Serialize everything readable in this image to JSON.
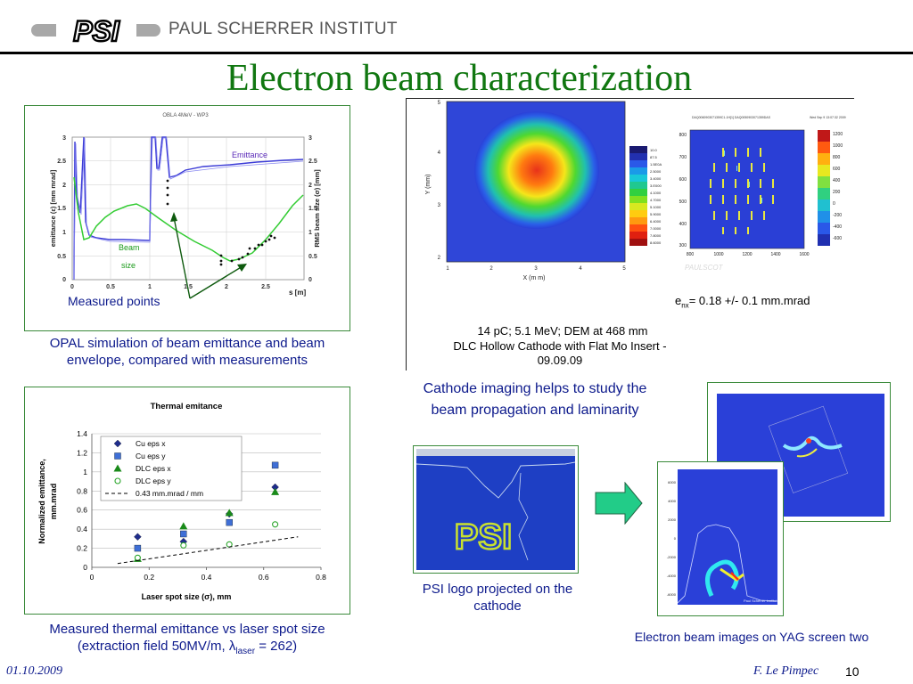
{
  "header": {
    "logo_text": "PSI",
    "institute": "PAUL SCHERRER INSTITUT",
    "title": "Electron beam characterization"
  },
  "panel_opal": {
    "plot_title": "OBLA 4MeV - WP3",
    "ylabel_left": "emittance (ε) [mm mrad]",
    "ylabel_right": "RMS beam size (σ) [mm]",
    "xlabel": "s [m]",
    "x_ticks": [
      "0",
      "0.5",
      "1",
      "1.5",
      "2",
      "2.5"
    ],
    "y_ticks_left": [
      "0",
      "0.5",
      "1",
      "1.5",
      "2",
      "2.5",
      "3"
    ],
    "y_ticks_right": [
      "0",
      "0.5",
      "1",
      "1.5",
      "2",
      "2.5",
      "3"
    ],
    "emittance_label": "Emittance",
    "beam_label": "Beam",
    "size_label": "size",
    "measured_label": "Measured points",
    "caption": "OPAL simulation of beam emittance and beam envelope, compared with measurements"
  },
  "panel_spot": {
    "xlabel": "X (m m)",
    "ylabel": "Y (mm)",
    "x_ticks": [
      "1",
      "2",
      "3",
      "4",
      "5"
    ],
    "y_ticks": [
      "2",
      "3",
      "4",
      "5"
    ],
    "colorbar_values": [
      "10.0",
      "87.5",
      "1.5E0A",
      "2.5000",
      "3.4000",
      "3.E000",
      "4.1000",
      "4.7000",
      "5.1000",
      "5.9000",
      "6.4000",
      "7.0000",
      "7.8000",
      "8.6000"
    ],
    "image_footer": "14 pC; 5.1 MeV; DEM at 468 mm",
    "cathode_line1": "DLC Hollow Cathode with Flat Mo Insert -",
    "cathode_line2": "09.09.09"
  },
  "panel_pepper": {
    "header_left": "DAQ0060903071359C1-1H[1] DAQ0050903071359DAS",
    "header_right": "Wed Sep 9 13:07:32 2009",
    "y_ticks": [
      "800",
      "700",
      "600",
      "500",
      "400",
      "300"
    ],
    "x_ticks": [
      "800",
      "1000",
      "1200",
      "1400",
      "1600"
    ],
    "colorbar_values": [
      "1200",
      "1000",
      "800",
      "600",
      "400",
      "200",
      "0",
      "-200",
      "-400",
      "-600"
    ],
    "watermark": "PAULSCOT",
    "emittance_text_prefix": "e",
    "emittance_text_sub": "nx",
    "emittance_text_value": "= 0.18 +/- 0.1 mm.mrad"
  },
  "cathode_caption": "Cathode imaging helps to study the beam propagation and laminarity",
  "chart_data": {
    "type": "scatter",
    "title": "Thermal emitance",
    "xlabel": "Laser spot size (σ), mm",
    "ylabel": "Normalized emittance, mm.mrad",
    "xlim": [
      0,
      0.8
    ],
    "ylim": [
      0,
      1.4
    ],
    "x_ticks": [
      "0",
      "0.2",
      "0.4",
      "0.6",
      "0.8"
    ],
    "y_ticks": [
      "0",
      "0.2",
      "0.4",
      "0.6",
      "0.8",
      "1",
      "1.2",
      "1.4"
    ],
    "grid": true,
    "legend_position": "top-left",
    "series": [
      {
        "name": "Cu eps x",
        "marker": "diamond",
        "color": "#1f2d8c",
        "x": [
          0.16,
          0.32,
          0.48,
          0.64
        ],
        "y": [
          0.32,
          0.27,
          0.56,
          0.84
        ]
      },
      {
        "name": "Cu eps y",
        "marker": "square",
        "color": "#3f6fd6",
        "x": [
          0.16,
          0.32,
          0.48,
          0.64
        ],
        "y": [
          0.2,
          0.35,
          0.47,
          1.07
        ]
      },
      {
        "name": "DLC eps x",
        "marker": "triangle",
        "color": "#1a8a1a",
        "x": [
          0.16,
          0.32,
          0.48,
          0.64
        ],
        "y": [
          0.09,
          0.43,
          0.57,
          0.79
        ]
      },
      {
        "name": "DLC eps y",
        "marker": "circle",
        "color": "#2aa52a",
        "x": [
          0.16,
          0.32,
          0.48,
          0.64
        ],
        "y": [
          0.1,
          0.23,
          0.24,
          0.45
        ]
      },
      {
        "name": "0.43 mm.mrad / mm",
        "marker": "dashed-line",
        "color": "#000000",
        "x": [
          0.09,
          0.72
        ],
        "y": [
          0.04,
          0.32
        ]
      }
    ]
  },
  "thermal_caption_line1": "Measured thermal emittance vs laser spot size",
  "thermal_caption_line2a": "(extraction field 50MV/m, ",
  "thermal_caption_lambda": "λ",
  "thermal_caption_sub": "laser",
  "thermal_caption_line2b": "  = 262)",
  "psi_image": {
    "logo_text": "PSI",
    "caption": "PSI logo projected on the cathode"
  },
  "yag_caption": "Electron beam images on YAG screen two",
  "yag_front": {
    "y_ticks": [
      "6000",
      "4000",
      "2000",
      "0",
      "-2000",
      "-4000",
      "-6000"
    ],
    "footer": "Paul Scherrer Institut"
  },
  "footer": {
    "date": "01.10.2009",
    "author": "F. Le Pimpec",
    "page": "10"
  }
}
